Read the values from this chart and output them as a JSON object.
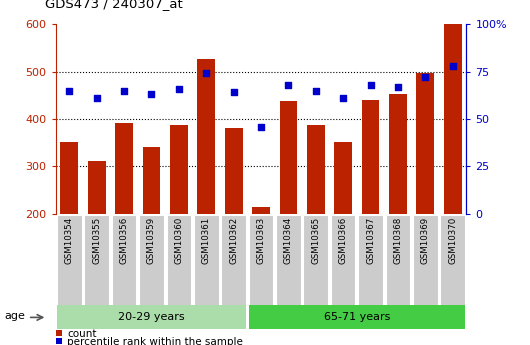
{
  "title": "GDS473 / 240307_at",
  "categories": [
    "GSM10354",
    "GSM10355",
    "GSM10356",
    "GSM10359",
    "GSM10360",
    "GSM10361",
    "GSM10362",
    "GSM10363",
    "GSM10364",
    "GSM10365",
    "GSM10366",
    "GSM10367",
    "GSM10368",
    "GSM10369",
    "GSM10370"
  ],
  "counts": [
    352,
    312,
    392,
    341,
    387,
    527,
    381,
    215,
    437,
    387,
    352,
    441,
    453,
    497,
    600
  ],
  "percentile_ranks": [
    65,
    61,
    65,
    63,
    66,
    74,
    64,
    46,
    68,
    65,
    61,
    68,
    67,
    72,
    78
  ],
  "bar_color": "#bb2200",
  "dot_color": "#0000cc",
  "ylim_left": [
    200,
    600
  ],
  "ylim_right": [
    0,
    100
  ],
  "yticks_left": [
    200,
    300,
    400,
    500,
    600
  ],
  "yticks_right": [
    0,
    25,
    50,
    75,
    100
  ],
  "yticklabels_right": [
    "0",
    "25",
    "50",
    "75",
    "100%"
  ],
  "groups": [
    {
      "label": "20-29 years",
      "indices": [
        0,
        6
      ],
      "color": "#aaddaa"
    },
    {
      "label": "65-71 years",
      "indices": [
        7,
        14
      ],
      "color": "#44cc44"
    }
  ],
  "age_label": "age",
  "legend_count": "count",
  "legend_percentile": "percentile rank within the sample",
  "left_tick_color": "#bb2200",
  "right_tick_color": "#0000cc",
  "grid_yticks": [
    300,
    400,
    500
  ]
}
